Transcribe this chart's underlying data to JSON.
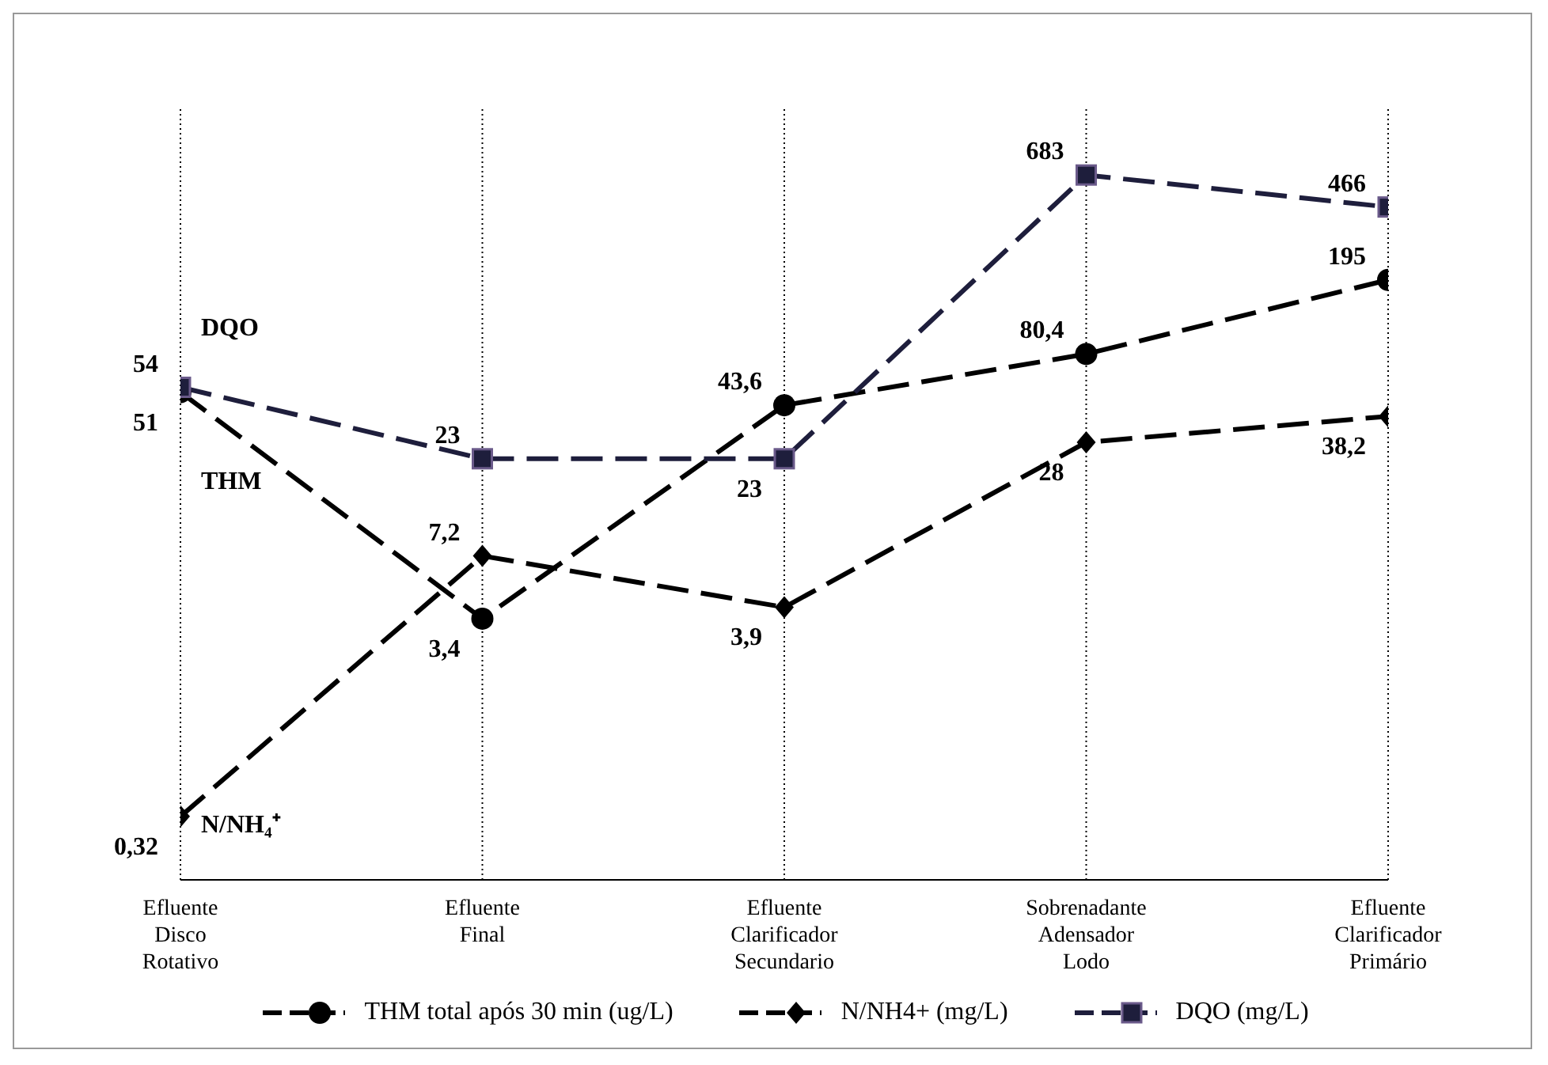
{
  "chart_data": {
    "type": "line",
    "log": true,
    "ylim": [
      0.15,
      1500
    ],
    "grid": "x",
    "legend": "bottom",
    "tick_labels": "x",
    "categories": [
      "Efluente\nDisco\nRotativo",
      "Efluente\nFinal",
      "Efluente\nClarificador\nSecundario",
      "Sobrenadante\nAdensador\nLodo",
      "Efluente\nClarificador\nPrimário"
    ],
    "series": [
      {
        "name": "THM total após 30 min (ug/L)",
        "color": "#000000",
        "marker": "circle",
        "line_style": "dashed",
        "values": [
          51,
          3.4,
          43.6,
          80.4,
          195
        ],
        "value_labels": [
          "51",
          "3,4",
          "43,6",
          "80,4",
          "195"
        ]
      },
      {
        "name": "N/NH4+  (mg/L)",
        "color": "#000000",
        "marker": "diamond",
        "line_style": "dashed",
        "values": [
          0.32,
          7.2,
          3.9,
          28,
          38.2
        ],
        "value_labels": [
          "0,32",
          "7,2",
          "3,9",
          "28",
          "38,2"
        ]
      },
      {
        "name": "DQO (mg/L)",
        "color": "#1e1e3c",
        "marker": "square",
        "line_style": "dashed",
        "values": [
          54,
          23,
          23,
          683,
          466
        ],
        "value_labels": [
          "54",
          "23",
          "23",
          "683",
          "466"
        ]
      }
    ],
    "annotations": [
      "DQO",
      "THM",
      "N/NH₄⁺"
    ]
  }
}
